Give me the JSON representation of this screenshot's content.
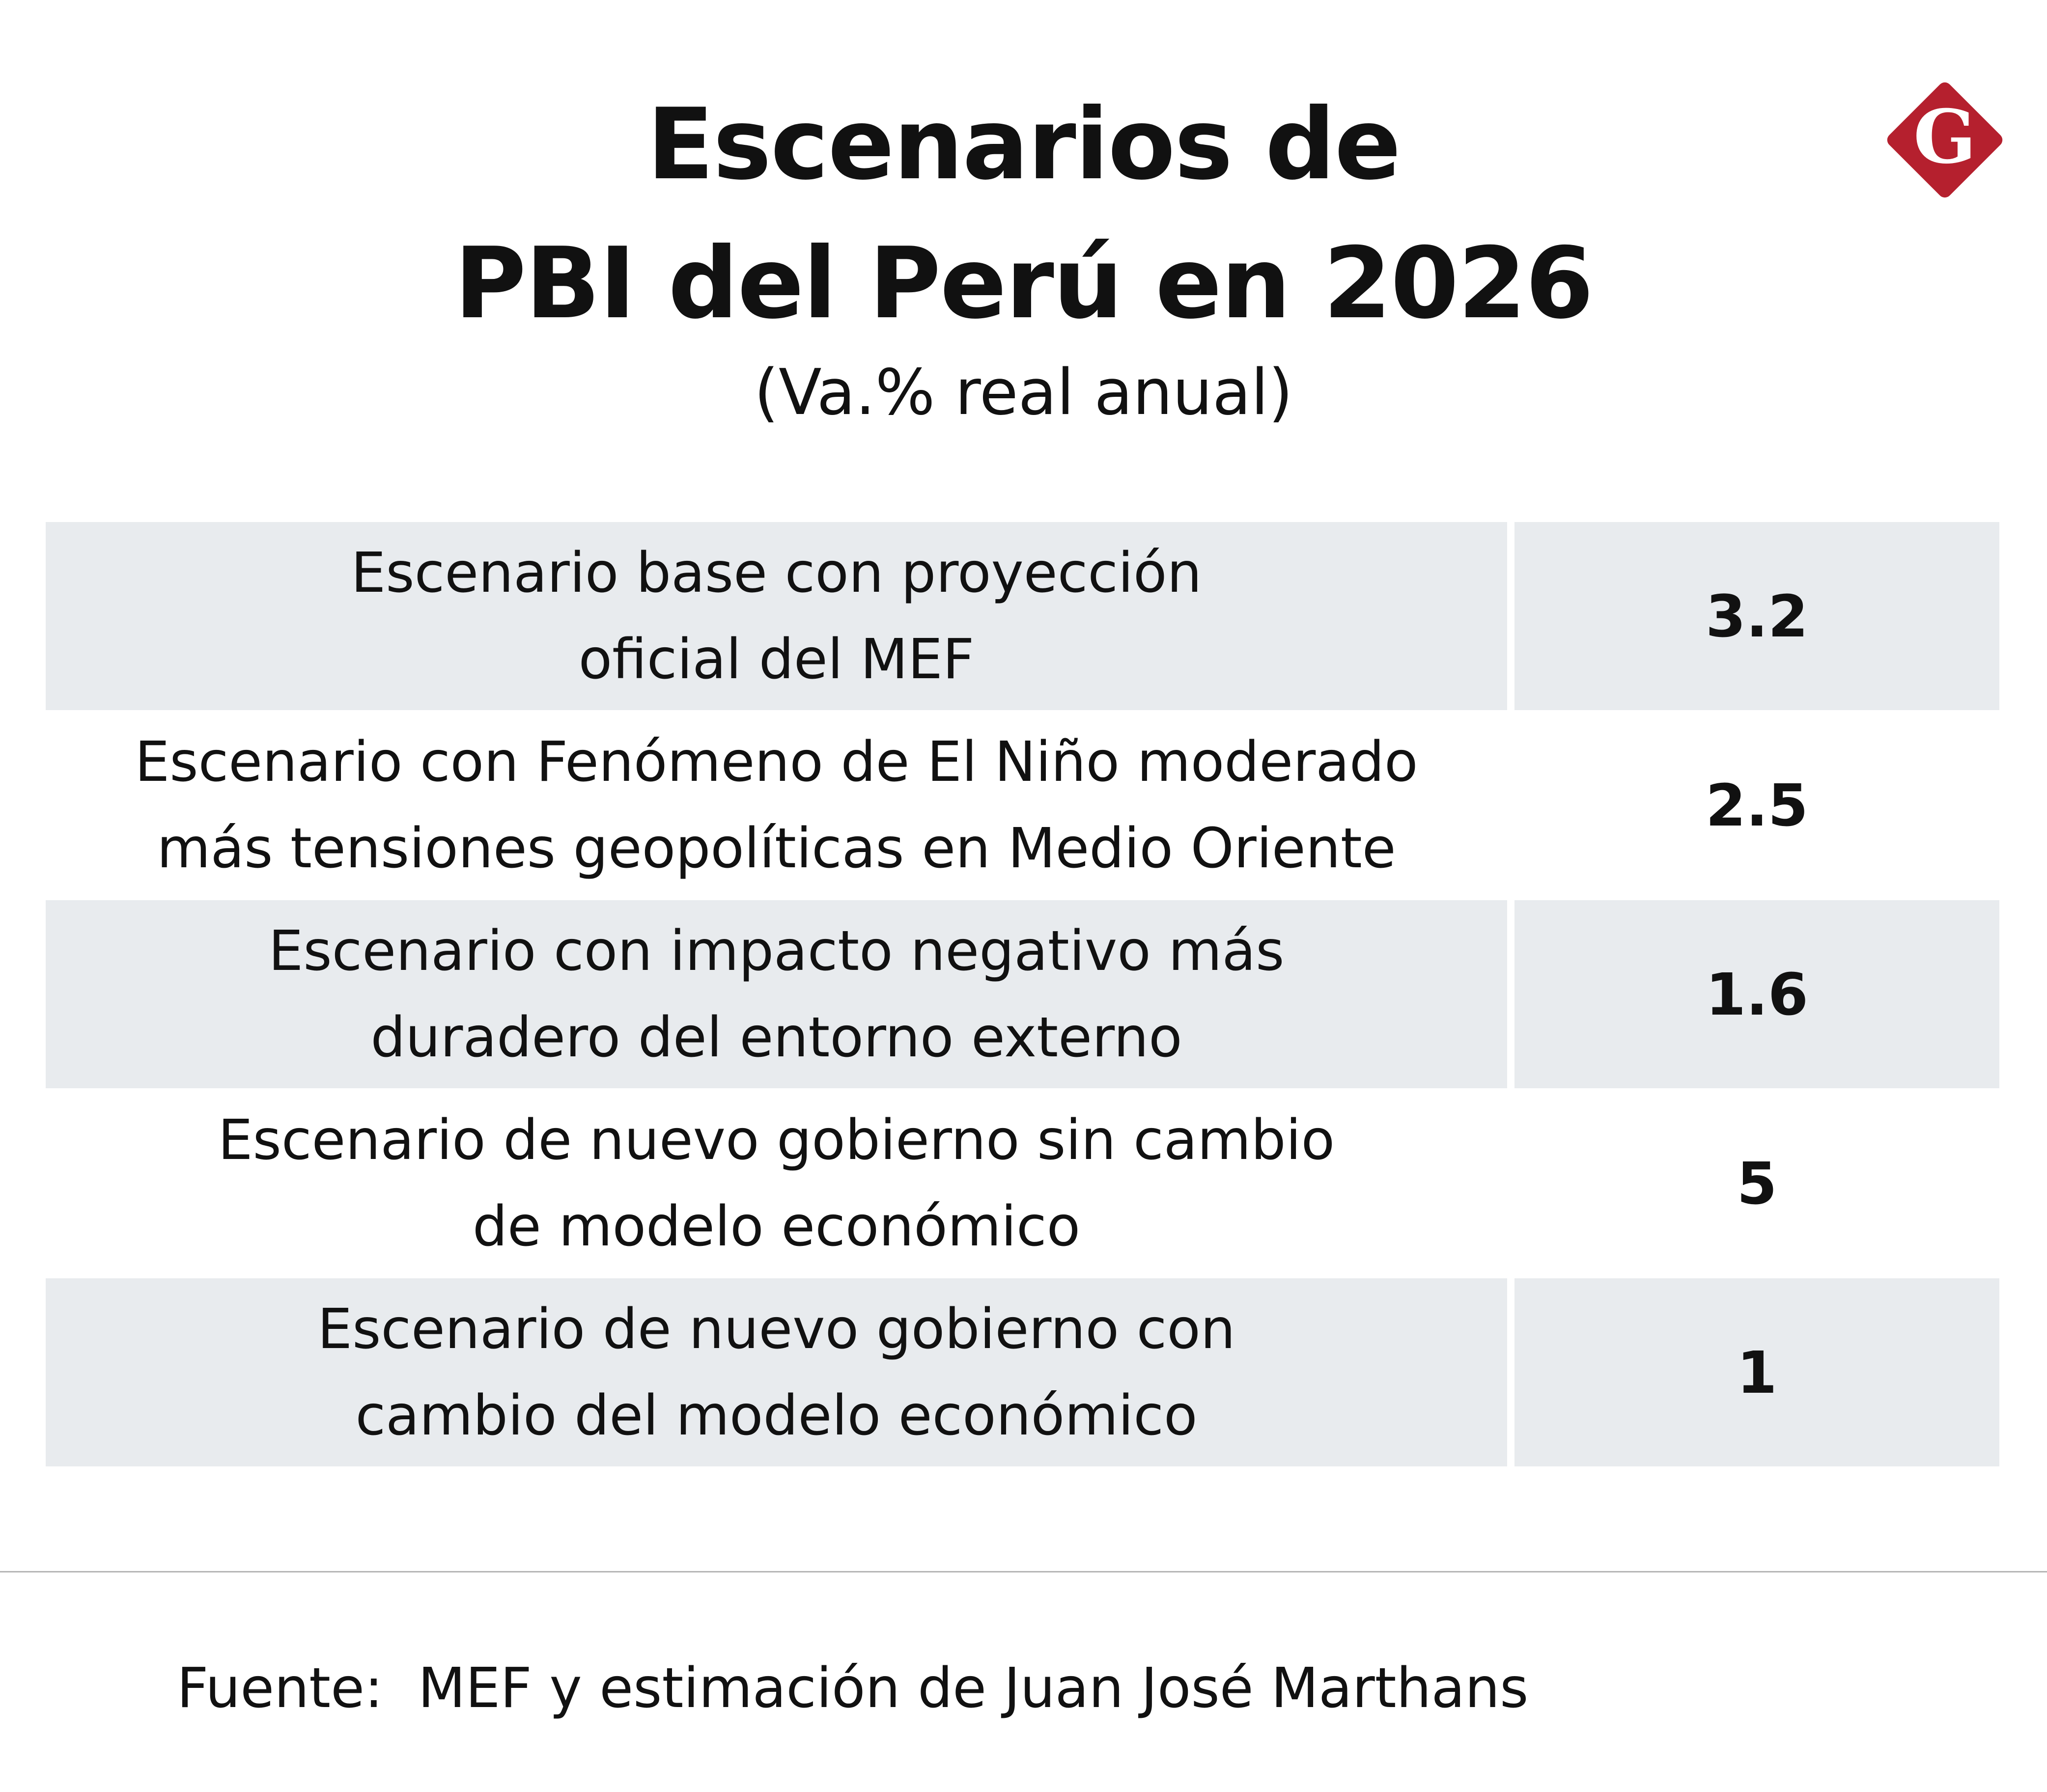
{
  "header": {
    "title_line_1": "Escenarios de",
    "title_line_2": "PBI del Perú en 2026",
    "subtitle": "(Va.% real anual)"
  },
  "logo": {
    "letter": "G",
    "icon": "g-diamond-logo-icon",
    "color": "#b5202e"
  },
  "chart_data": {
    "type": "table",
    "columns": [
      "",
      ""
    ],
    "rows": [
      {
        "label_lines": [
          "Escenario base con proyección",
          "oficial del MEF"
        ],
        "value": "3.2"
      },
      {
        "label_lines": [
          "Escenario con Fenómeno de El Niño moderado",
          "más tensiones geopolíticas en Medio Oriente"
        ],
        "value": "2.5"
      },
      {
        "label_lines": [
          "Escenario con impacto negativo más",
          "duradero del entorno externo"
        ],
        "value": "1.6"
      },
      {
        "label_lines": [
          "Escenario de nuevo gobierno sin cambio",
          "de modelo económico"
        ],
        "value": "5"
      },
      {
        "label_lines": [
          "Escenario de nuevo gobierno con",
          "cambio del modelo económico"
        ],
        "value": "1"
      }
    ],
    "shaded_row_color": "#e8ebee"
  },
  "footer": {
    "source": "Fuente:  MEF y estimación de Juan José Marthans"
  }
}
